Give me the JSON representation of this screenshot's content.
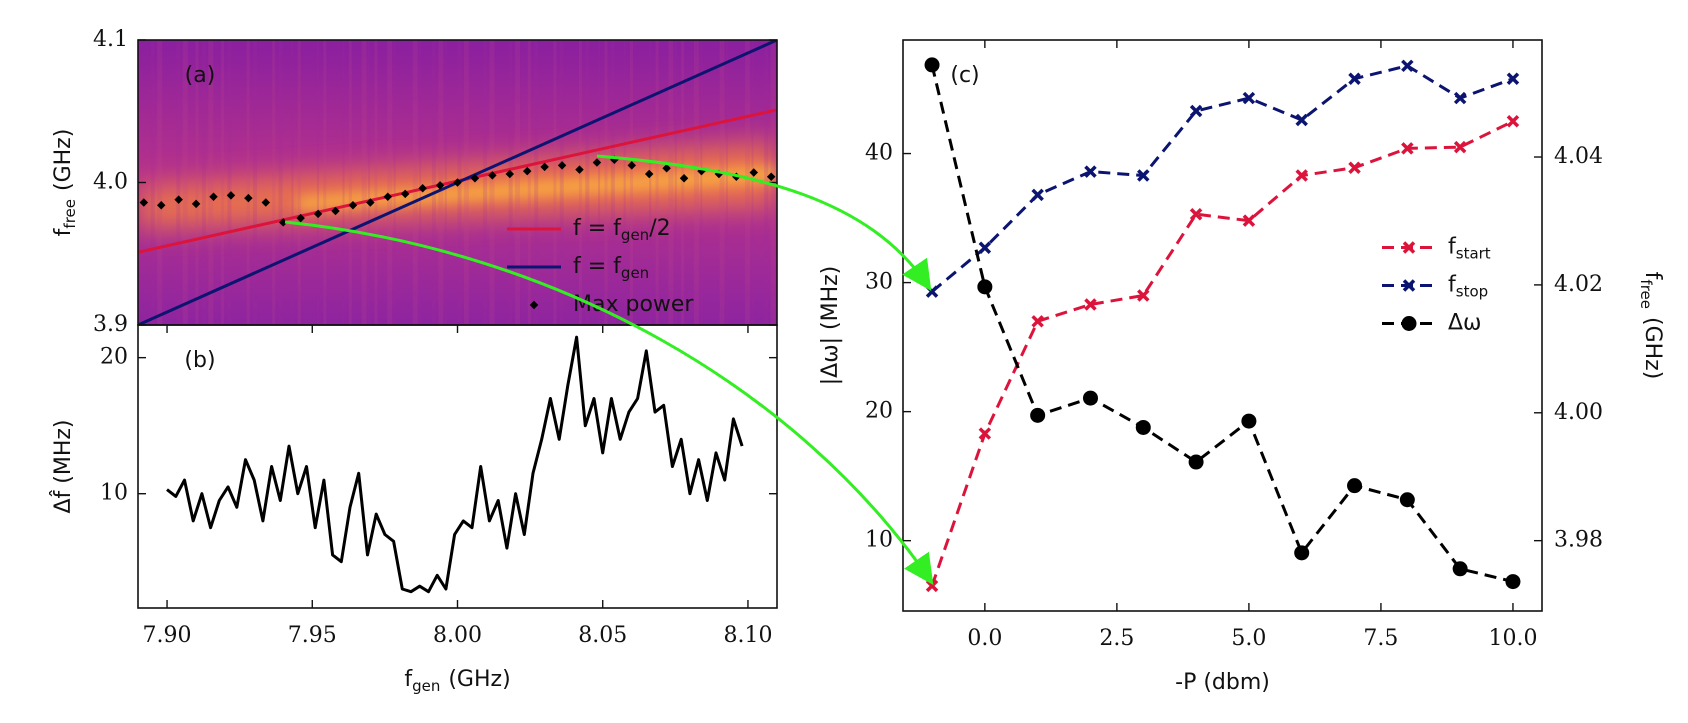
{
  "chart_data": [
    {
      "type": "heatmap",
      "annotation": "(a)",
      "ylabel": {
        "base": "f",
        "sub": "free",
        "rest": "(GHz)"
      },
      "xlim": [
        7.89,
        8.11
      ],
      "ylim": [
        3.9,
        4.1
      ],
      "yticks": [
        3.9,
        {
          "value": 4,
          "label": "4.0"
        },
        4.1
      ],
      "legend": "lower right",
      "series": [
        {
          "name": {
            "base": "f = f",
            "sub": "gen",
            "rest": "/2"
          },
          "color": "#dc143c",
          "style": "line",
          "x": [
            7.89,
            8.11
          ],
          "values": [
            3.951,
            4.051
          ]
        },
        {
          "name": {
            "base": "f = f",
            "sub": "gen"
          },
          "color": "#0b1470",
          "style": "line",
          "x": [
            7.89,
            8.11
          ],
          "values": [
            3.9,
            4.1
          ]
        },
        {
          "name": "Max power",
          "color": "#000000",
          "style": "scatter",
          "x": [
            7.892,
            7.898,
            7.904,
            7.91,
            7.916,
            7.922,
            7.928,
            7.934,
            7.94,
            7.946,
            7.952,
            7.958,
            7.964,
            7.97,
            7.976,
            7.982,
            7.988,
            7.994,
            8.0,
            8.006,
            8.012,
            8.018,
            8.024,
            8.03,
            8.036,
            8.042,
            8.048,
            8.054,
            8.06,
            8.066,
            8.072,
            8.078,
            8.084,
            8.09,
            8.096,
            8.102,
            8.108
          ],
          "values": [
            3.986,
            3.984,
            3.988,
            3.985,
            3.99,
            3.991,
            3.989,
            3.986,
            3.972,
            3.975,
            3.978,
            3.98,
            3.984,
            3.986,
            3.99,
            3.992,
            3.996,
            3.998,
            4.0,
            4.003,
            4.005,
            4.006,
            4.008,
            4.011,
            4.012,
            4.009,
            4.014,
            4.016,
            4.012,
            4.006,
            4.01,
            4.003,
            4.008,
            4.006,
            4.004,
            4.007,
            4.004
          ]
        }
      ]
    },
    {
      "type": "line",
      "annotation": "(b)",
      "xlabel": {
        "base": "f",
        "sub": "gen",
        "rest": "(GHz)"
      },
      "ylabel": "Δf̂ (MHz)",
      "xlim": [
        7.89,
        8.11
      ],
      "xticks": [
        {
          "value": 7.9,
          "label": "7.90"
        },
        7.95,
        {
          "value": 8,
          "label": "8.00"
        },
        8.05,
        {
          "value": 8.1,
          "label": "8.10"
        }
      ],
      "ylim": [
        1.6,
        22.4
      ],
      "yticks": [
        10,
        20
      ],
      "x": [
        7.9,
        7.903,
        7.906,
        7.909,
        7.912,
        7.915,
        7.918,
        7.921,
        7.924,
        7.927,
        7.93,
        7.933,
        7.936,
        7.939,
        7.942,
        7.945,
        7.948,
        7.951,
        7.954,
        7.957,
        7.96,
        7.963,
        7.966,
        7.969,
        7.972,
        7.975,
        7.978,
        7.981,
        7.984,
        7.987,
        7.99,
        7.993,
        7.996,
        7.999,
        8.002,
        8.005,
        8.008,
        8.011,
        8.014,
        8.017,
        8.02,
        8.023,
        8.026,
        8.029,
        8.032,
        8.035,
        8.038,
        8.041,
        8.044,
        8.047,
        8.05,
        8.053,
        8.056,
        8.059,
        8.062,
        8.065,
        8.068,
        8.071,
        8.074,
        8.077,
        8.08,
        8.083,
        8.086,
        8.089,
        8.092,
        8.095,
        8.098
      ],
      "series": [
        {
          "color": "#000000",
          "values": [
            10.3,
            9.8,
            11,
            8,
            10,
            7.5,
            9.5,
            10.5,
            9,
            12.5,
            11,
            8,
            12,
            9.5,
            13.5,
            10,
            12,
            7.5,
            11,
            5.5,
            5,
            9,
            11.5,
            5.5,
            8.5,
            7,
            6.5,
            3,
            2.8,
            3.2,
            2.8,
            4,
            3,
            7,
            8,
            7.5,
            12,
            8,
            9.5,
            6,
            10,
            7,
            11.5,
            14,
            17,
            14,
            18,
            21.5,
            15,
            17,
            13,
            17,
            14,
            16,
            17,
            20.5,
            16,
            16.5,
            12,
            14,
            10,
            12.5,
            9.5,
            13,
            11,
            15.5,
            13.5
          ]
        }
      ]
    },
    {
      "type": "line",
      "annotation": "(c)",
      "xlabel": "-P (dbm)",
      "ylabel": "|Δω| (MHz)",
      "y2label": {
        "base": "f",
        "sub": "free",
        "rest": "(GHz)"
      },
      "xlim": [
        -1.55,
        10.55
      ],
      "xticks": [
        {
          "value": 0,
          "label": "0.0"
        },
        2.5,
        {
          "value": 5,
          "label": "5.0"
        },
        7.5,
        {
          "value": 10,
          "label": "10.0"
        }
      ],
      "ylim": [
        4.55,
        48.8
      ],
      "yticks": [
        10,
        20,
        30,
        40
      ],
      "y2lim": [
        3.969,
        4.0583
      ],
      "y2ticks": [
        3.98,
        {
          "value": 4,
          "label": "4.00"
        },
        4.02,
        4.04
      ],
      "legend": "center right",
      "x": [
        -1,
        0,
        1,
        2,
        3,
        4,
        5,
        6,
        7,
        8,
        9,
        10
      ],
      "series": [
        {
          "name": {
            "base": "f",
            "sub": "start"
          },
          "color": "#dc143c",
          "marker": "x",
          "dash": true,
          "values": [
            6.5,
            18.3,
            27,
            28.3,
            29,
            35.3,
            34.8,
            38.3,
            38.9,
            40.4,
            40.5,
            42.5
          ]
        },
        {
          "name": {
            "base": "f",
            "sub": "stop"
          },
          "color": "#0b1470",
          "marker": "x",
          "dash": true,
          "values": [
            29.3,
            32.7,
            36.8,
            38.6,
            38.3,
            43.3,
            44.3,
            42.6,
            45.8,
            46.8,
            44.3,
            45.8
          ]
        },
        {
          "name": "Δω",
          "color": "#000000",
          "marker": "o",
          "dash": true,
          "axis": "y2",
          "values": [
            4.0544,
            4.0197,
            3.9996,
            4.0023,
            3.9977,
            3.9923,
            3.9987,
            3.9781,
            3.9886,
            3.9864,
            3.9756,
            3.9736
          ]
        }
      ]
    }
  ]
}
